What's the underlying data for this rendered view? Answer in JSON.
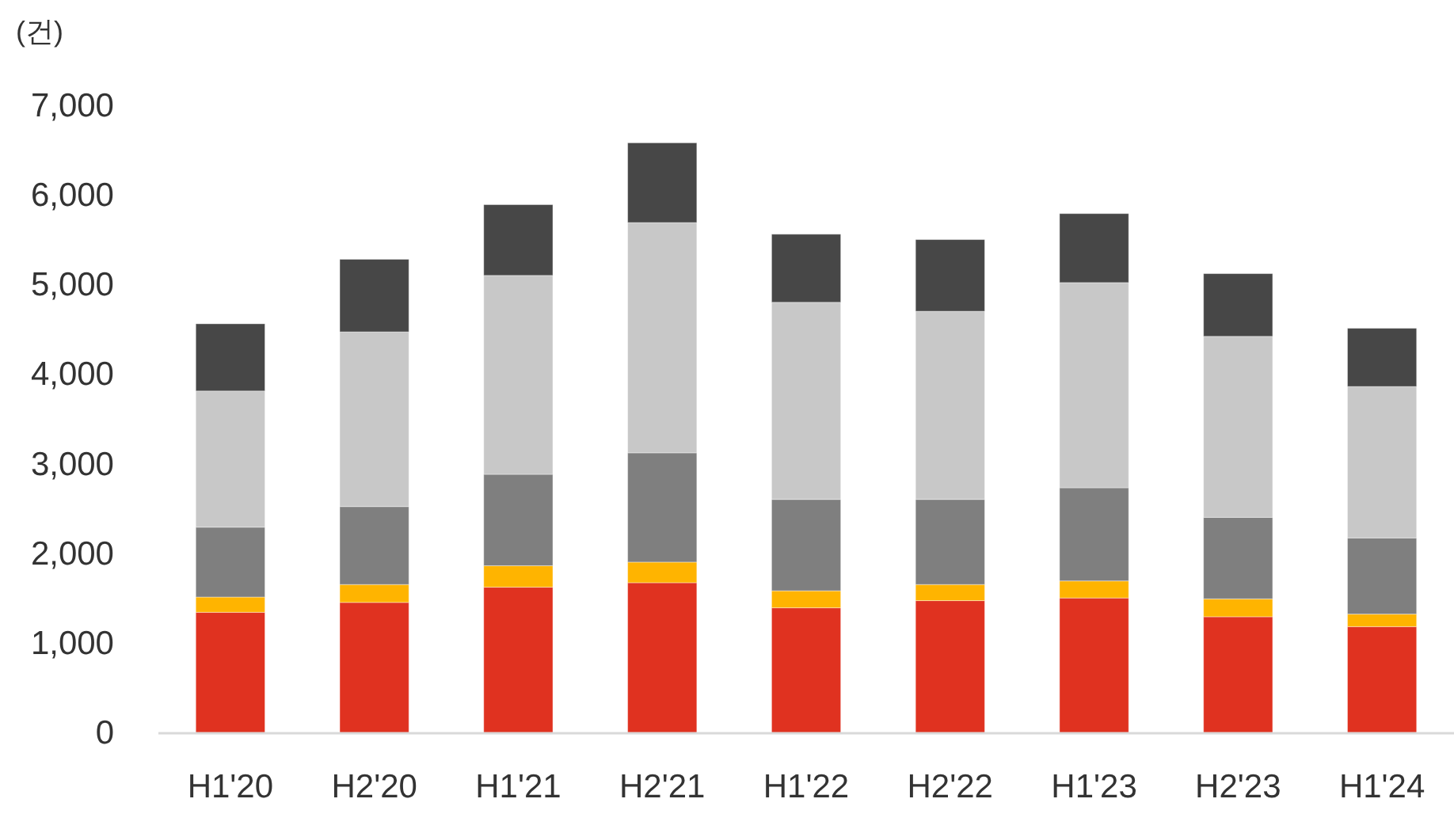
{
  "chart_data": {
    "type": "bar",
    "stacked": true,
    "ylabel": "(건)",
    "categories": [
      "H1'20",
      "H2'20",
      "H1'21",
      "H2'21",
      "H1'22",
      "H2'22",
      "H1'23",
      "H2'23",
      "H1'24"
    ],
    "series": [
      {
        "color": "#e03220",
        "values": [
          1350,
          1460,
          1630,
          1680,
          1400,
          1480,
          1510,
          1300,
          1190
        ]
      },
      {
        "color": "#ffb400",
        "values": [
          170,
          200,
          240,
          230,
          190,
          180,
          190,
          200,
          140
        ]
      },
      {
        "color": "#7f7f7f",
        "values": [
          780,
          870,
          1020,
          1220,
          1020,
          950,
          1040,
          910,
          850
        ]
      },
      {
        "color": "#c8c8c8",
        "values": [
          1520,
          1950,
          2220,
          2570,
          2200,
          2100,
          2290,
          2020,
          1690
        ]
      },
      {
        "color": "#474747",
        "values": [
          750,
          810,
          790,
          890,
          760,
          800,
          770,
          700,
          650
        ]
      }
    ],
    "ylim": [
      0,
      7000
    ],
    "yticks": [
      {
        "value": 0,
        "label": "0"
      },
      {
        "value": 1000,
        "label": "1,000"
      },
      {
        "value": 2000,
        "label": "2,000"
      },
      {
        "value": 3000,
        "label": "3,000"
      },
      {
        "value": 4000,
        "label": "4,000"
      },
      {
        "value": 5000,
        "label": "5,000"
      },
      {
        "value": 6000,
        "label": "6,000"
      },
      {
        "value": 7000,
        "label": "7,000"
      }
    ],
    "grid": false
  }
}
